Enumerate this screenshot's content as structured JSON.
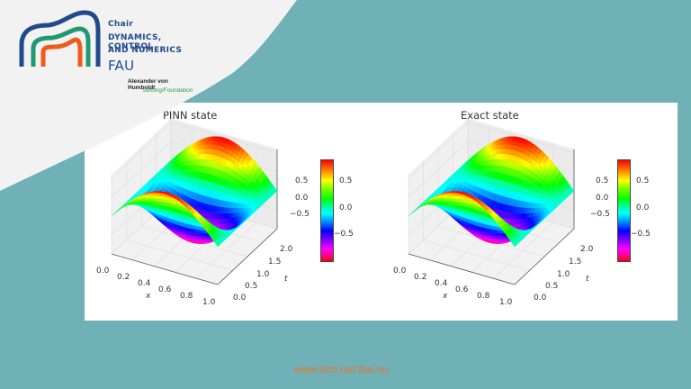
{
  "header": {
    "logo": {
      "line1": "Chair",
      "line2": "DYNAMICS, CONTROL",
      "line3": "AND NUMERICS",
      "line4": "FAU",
      "humboldt": "Alexander von Humboldt",
      "stiftung": "Stiftung/Foundation"
    }
  },
  "colors": {
    "background_teal": "#6fb1b7",
    "gray_shape": "#f2f2f2",
    "logo_blue": "#1f4a8c",
    "logo_green": "#1f9a6e",
    "logo_orange": "#f05a1a",
    "footer_orange": "#e8742a"
  },
  "footer": {
    "url": "www.dcn.nat.fau.eu"
  },
  "chart_data": [
    {
      "type": "surface3d",
      "title": "PINN state",
      "xlabel": "x",
      "ylabel": "t",
      "zlabel": "",
      "x_ticks": [
        "0.0",
        "0.2",
        "0.4",
        "0.6",
        "0.8",
        "1.0"
      ],
      "t_ticks": [
        "0.0",
        "0.5",
        "1.0",
        "1.5",
        "2.0"
      ],
      "z_ticks": [
        "0.5",
        "0.0",
        "−0.5"
      ],
      "xlim": [
        0,
        1
      ],
      "tlim": [
        0,
        2
      ],
      "zlim": [
        -1,
        1
      ],
      "colormap": "gist_rainbow",
      "surface": "u(x,t) = sin(pi x) cos(pi t)",
      "colorbar": {
        "ticks": [
          "0.5",
          "0.0",
          "−0.5"
        ],
        "range": [
          -1,
          1
        ]
      }
    },
    {
      "type": "surface3d",
      "title": "Exact state",
      "xlabel": "x",
      "ylabel": "t",
      "zlabel": "",
      "x_ticks": [
        "0.0",
        "0.2",
        "0.4",
        "0.6",
        "0.8",
        "1.0"
      ],
      "t_ticks": [
        "0.0",
        "0.5",
        "1.0",
        "1.5",
        "2.0"
      ],
      "z_ticks": [
        "0.5",
        "0.0",
        "−0.5"
      ],
      "xlim": [
        0,
        1
      ],
      "tlim": [
        0,
        2
      ],
      "zlim": [
        -1,
        1
      ],
      "colormap": "gist_rainbow",
      "surface": "u(x,t) = sin(pi x) cos(pi t)",
      "colorbar": {
        "ticks": [
          "0.5",
          "0.0",
          "−0.5"
        ],
        "range": [
          -1,
          1
        ]
      }
    }
  ]
}
